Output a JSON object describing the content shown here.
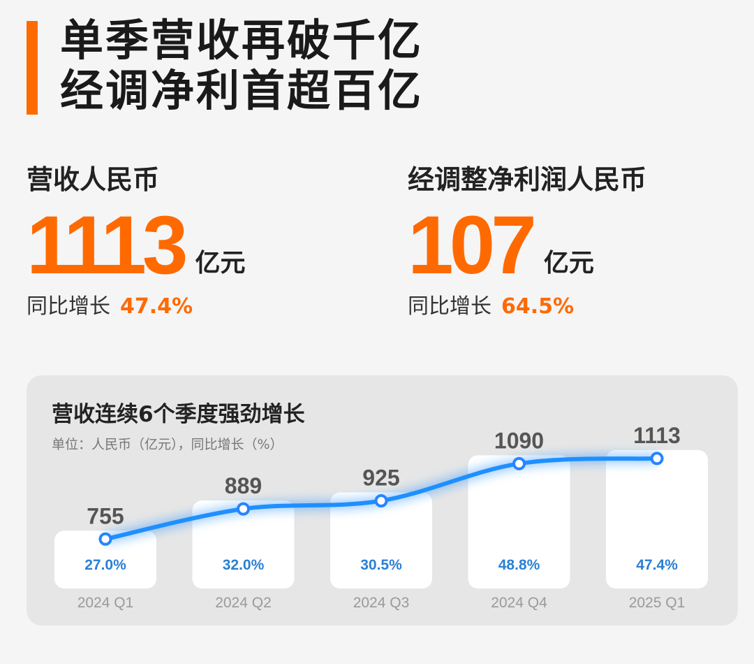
{
  "header": {
    "line1": "单季营收再破千亿",
    "line2": "经调净利首超百亿"
  },
  "metrics": {
    "revenue": {
      "label": "营收人民币",
      "value": "1113",
      "unit": "亿元",
      "growth_label": "同比增长",
      "growth": "47.4%"
    },
    "profit": {
      "label": "经调整净利润人民币",
      "value": "107",
      "unit": "亿元",
      "growth_label": "同比增长",
      "growth": "64.5%"
    }
  },
  "colors": {
    "accent": "#ff6a00",
    "line": "#1f8fff",
    "growth_text": "#2a7fd4"
  },
  "chart_card": {
    "title": "营收连续6个季度强劲增长",
    "subtitle": "单位：人民币（亿元），同比增长（%）"
  },
  "chart_data": {
    "type": "line",
    "title": "营收连续6个季度强劲增长",
    "subtitle": "单位：人民币（亿元），同比增长（%）",
    "categories": [
      "2024 Q1",
      "2024 Q2",
      "2024 Q3",
      "2024 Q4",
      "2025 Q1"
    ],
    "series": [
      {
        "values": [
          755,
          889,
          925,
          1090,
          1113
        ]
      }
    ],
    "growth_labels": [
      "27.0%",
      "32.0%",
      "30.5%",
      "48.8%",
      "47.4%"
    ],
    "grid": false,
    "legend": "none"
  }
}
